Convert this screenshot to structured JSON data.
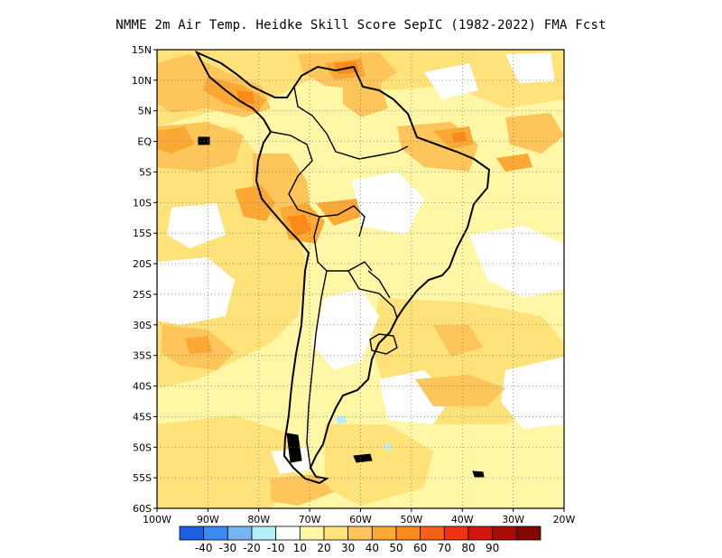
{
  "title": "NMME  2m Air Temp. Heidke Skill Score SepIC (1982-2022) FMA Fcst",
  "map": {
    "lat_labels": [
      "15N",
      "10N",
      "5N",
      "EQ",
      "5S",
      "10S",
      "15S",
      "20S",
      "25S",
      "30S",
      "35S",
      "40S",
      "45S",
      "50S",
      "55S",
      "60S"
    ],
    "lon_labels": [
      "100W",
      "90W",
      "80W",
      "70W",
      "60W",
      "50W",
      "40W",
      "30W",
      "20W"
    ],
    "lat_range": [
      -60,
      15
    ],
    "lon_range": [
      -100,
      -20
    ],
    "grid": "dotted"
  },
  "colorbar": {
    "colors": [
      "#1c5fe0",
      "#3a8bf0",
      "#77b6f5",
      "#b4eef8",
      "#ffffff",
      "#fff6a6",
      "#ffe27a",
      "#fec65a",
      "#fba834",
      "#fb8a1a",
      "#f6611a",
      "#ed3312",
      "#d0160e",
      "#a90c06",
      "#850500"
    ],
    "labels": [
      "-40",
      "-30",
      "-20",
      "-10",
      "10",
      "20",
      "30",
      "40",
      "50",
      "60",
      "70",
      "80",
      "90"
    ]
  }
}
